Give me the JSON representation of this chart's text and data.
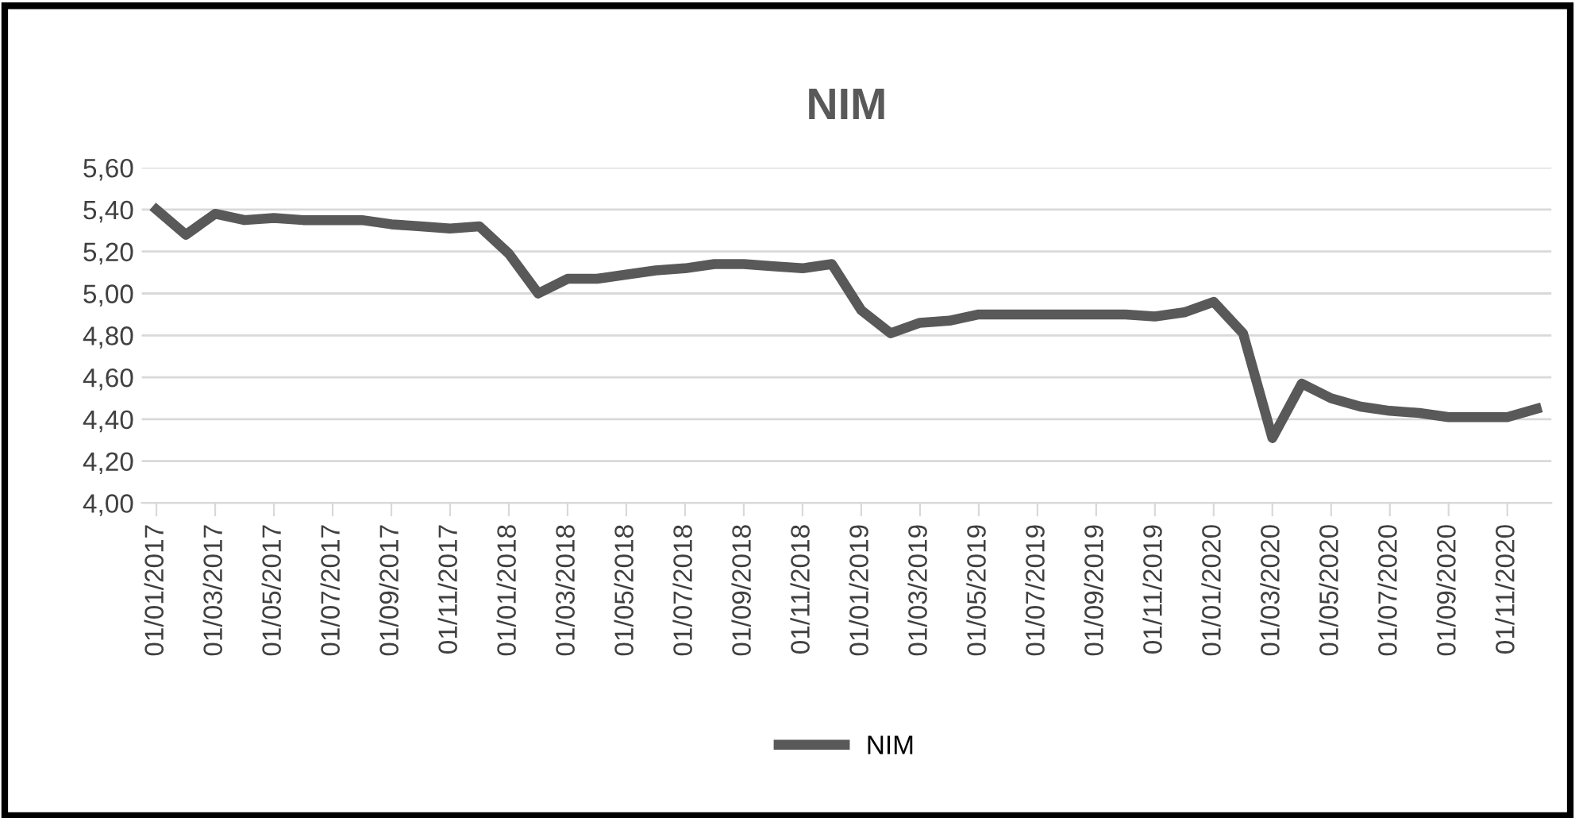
{
  "chart_data": {
    "type": "line",
    "title": "NIM",
    "categories": [
      "01/01/2017",
      null,
      "01/03/2017",
      null,
      "01/05/2017",
      null,
      "01/07/2017",
      null,
      "01/09/2017",
      null,
      "01/11/2017",
      null,
      "01/01/2018",
      null,
      "01/03/2018",
      null,
      "01/05/2018",
      null,
      "01/07/2018",
      null,
      "01/09/2018",
      null,
      "01/11/2018",
      null,
      "01/01/2019",
      null,
      "01/03/2019",
      null,
      "01/05/2019",
      null,
      "01/07/2019",
      null,
      "01/09/2019",
      null,
      "01/11/2019",
      null,
      "01/01/2020",
      null,
      "01/03/2020",
      null,
      "01/05/2020",
      null,
      "01/07/2020",
      null,
      "01/09/2020",
      null,
      "01/11/2020",
      null
    ],
    "series": [
      {
        "name": "NIM",
        "color": "#595959",
        "values": [
          5.4,
          5.28,
          5.38,
          5.35,
          5.36,
          5.35,
          5.35,
          5.35,
          5.33,
          5.32,
          5.31,
          5.32,
          5.19,
          5.0,
          5.07,
          5.07,
          5.09,
          5.11,
          5.12,
          5.14,
          5.14,
          5.13,
          5.12,
          5.14,
          4.92,
          4.81,
          4.86,
          4.87,
          4.9,
          4.9,
          4.9,
          4.9,
          4.9,
          4.9,
          4.89,
          4.91,
          4.96,
          4.81,
          4.31,
          4.57,
          4.5,
          4.46,
          4.44,
          4.43,
          4.41,
          4.41,
          4.41,
          4.45
        ]
      }
    ],
    "ylim": [
      4.0,
      5.6
    ],
    "yticks": [
      {
        "value": 4.0,
        "label": "4,00"
      },
      {
        "value": 4.2,
        "label": "4,20"
      },
      {
        "value": 4.4,
        "label": "4,40"
      },
      {
        "value": 4.6,
        "label": "4,60"
      },
      {
        "value": 4.8,
        "label": "4,80"
      },
      {
        "value": 5.0,
        "label": "5,00"
      },
      {
        "value": 5.2,
        "label": "5,20"
      },
      {
        "value": 5.4,
        "label": "5,40"
      },
      {
        "value": 5.6,
        "label": "5,60"
      }
    ],
    "grid": "y",
    "legend": "bottom",
    "marker": "none",
    "line_style": "solid"
  }
}
